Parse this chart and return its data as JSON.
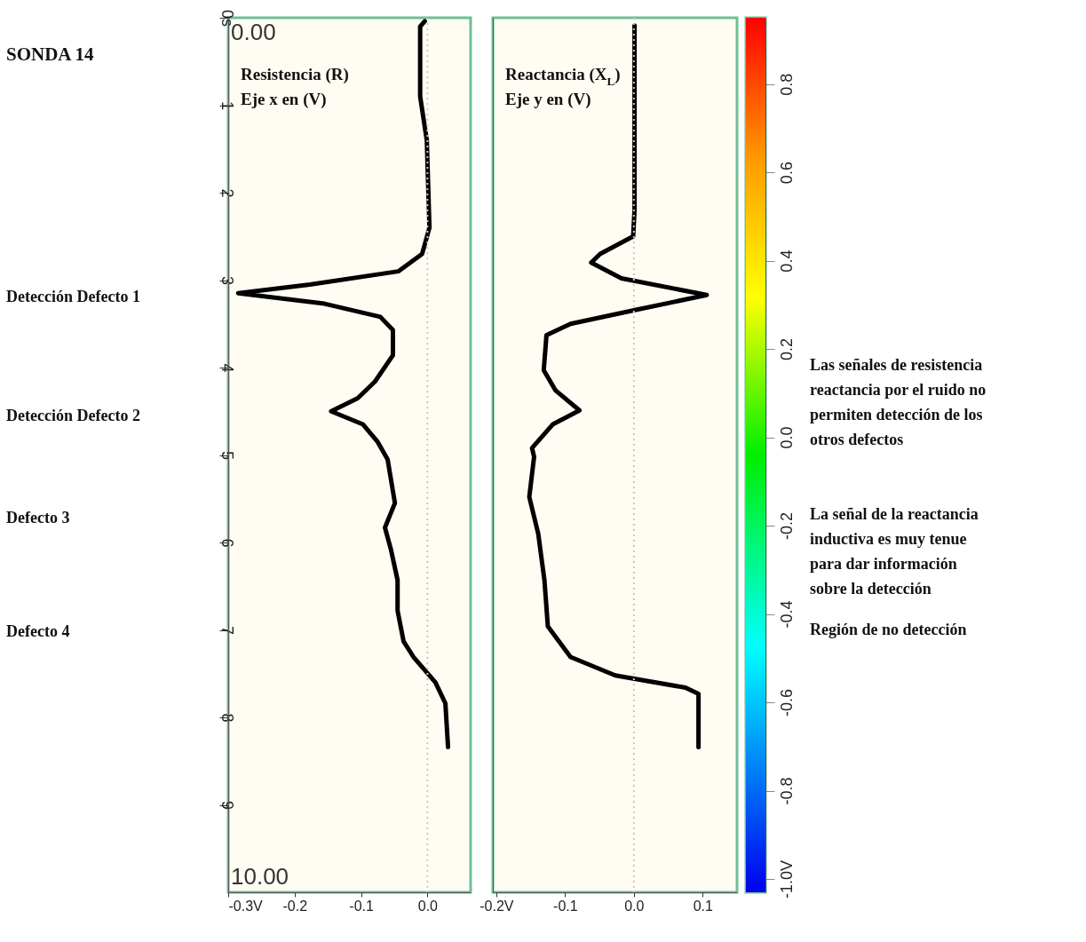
{
  "chart_data": [
    {
      "type": "line",
      "xlabel": "Resistencia (R)\nEje x en (V)",
      "series": [
        {
          "color": "#000000",
          "x": [
            -0.004,
            -0.011,
            -0.011,
            -0.001,
            0.001,
            0.003,
            -0.008,
            -0.044,
            -0.177,
            -0.285,
            -0.155,
            -0.071,
            -0.052,
            -0.052,
            -0.079,
            -0.105,
            -0.145,
            -0.097,
            -0.075,
            -0.06,
            -0.049,
            -0.064,
            -0.055,
            -0.045,
            -0.045,
            -0.036,
            -0.021,
            0.012,
            0.027,
            0.031
          ],
          "values": [
            0.04,
            0.1,
            0.9,
            1.4,
            1.9,
            2.4,
            2.7,
            2.9,
            3.05,
            3.15,
            3.27,
            3.42,
            3.57,
            3.86,
            4.16,
            4.35,
            4.5,
            4.65,
            4.85,
            5.05,
            5.55,
            5.83,
            6.08,
            6.43,
            6.78,
            7.13,
            7.31,
            7.6,
            7.84,
            8.34
          ]
        }
      ],
      "xlim": [
        -0.3,
        0.065
      ],
      "xticks": [
        {
          "value": -0.3,
          "label": "-0.3V"
        },
        {
          "value": -0.2,
          "label": "-0.2"
        },
        {
          "value": -0.1,
          "label": "-0.1"
        },
        {
          "value": 0,
          "label": "0.0"
        }
      ],
      "ylim": [
        10,
        0
      ],
      "yticks": [
        {
          "value": 0,
          "label": "0s"
        },
        1,
        2,
        3,
        4,
        5,
        6,
        7,
        8,
        9
      ],
      "ref_lines": [
        {
          "axis": "x",
          "value": 0,
          "color": "#c8c8c8",
          "line_style": "dotted"
        }
      ],
      "annotations": [
        "SONDA 14",
        "0.00",
        "10.00",
        "Detección Defecto 1",
        "Detección Defecto 2",
        "Defecto 3",
        "Defecto 4"
      ]
    },
    {
      "type": "line",
      "xlabel": "Reactancia (X$_{L}$)\nEje y en (V)",
      "series": [
        {
          "color": "#000000",
          "x": [
            0.001,
            0.001,
            -0.001,
            -0.049,
            -0.062,
            -0.018,
            0.106,
            0.003,
            -0.092,
            -0.127,
            -0.131,
            -0.114,
            -0.079,
            -0.118,
            -0.148,
            -0.145,
            -0.152,
            -0.139,
            -0.13,
            -0.125,
            -0.092,
            -0.027,
            0.075,
            0.094,
            0.094
          ],
          "values": [
            0.09,
            2.2,
            2.5,
            2.7,
            2.8,
            2.98,
            3.17,
            3.34,
            3.5,
            3.63,
            4.03,
            4.26,
            4.49,
            4.65,
            4.92,
            5.02,
            5.48,
            5.9,
            6.43,
            6.96,
            7.31,
            7.52,
            7.66,
            7.73,
            8.34
          ]
        }
      ],
      "xlim": [
        -0.205,
        0.15
      ],
      "xticks": [
        {
          "value": -0.2,
          "label": "-0.2V"
        },
        {
          "value": -0.1,
          "label": "-0.1"
        },
        {
          "value": 0,
          "label": "0.0"
        },
        {
          "value": 0.1,
          "label": "0.1"
        }
      ],
      "ylim": [
        10,
        0
      ],
      "tick_labels": "x",
      "ref_lines": [
        {
          "axis": "x",
          "value": 0,
          "color": "#c8c8c8",
          "line_style": "dotted"
        }
      ],
      "clim": [
        -1.03,
        0.95
      ],
      "cticks": [
        {
          "value": 0.8,
          "label": "0.8"
        },
        {
          "value": 0.6,
          "label": "0.6"
        },
        {
          "value": 0.4,
          "label": "0.4"
        },
        {
          "value": 0.2,
          "label": "0.2"
        },
        {
          "value": 0,
          "label": "0.0"
        },
        {
          "value": -0.2,
          "label": "-0.2"
        },
        {
          "value": -0.4,
          "label": "-0.4"
        },
        {
          "value": -0.6,
          "label": "-0.6"
        },
        {
          "value": -0.8,
          "label": "-0.8"
        },
        {
          "value": -1.0,
          "label": "-1.0V"
        }
      ],
      "annotations": [
        "Las señales de resistencia\nreactancia por el ruido no\npermiten detección de los\notros defectos",
        "La señal de la reactancia\ninductiva es muy tenue\npara dar información\nsobre la detección",
        "Región de no detección"
      ]
    }
  ]
}
